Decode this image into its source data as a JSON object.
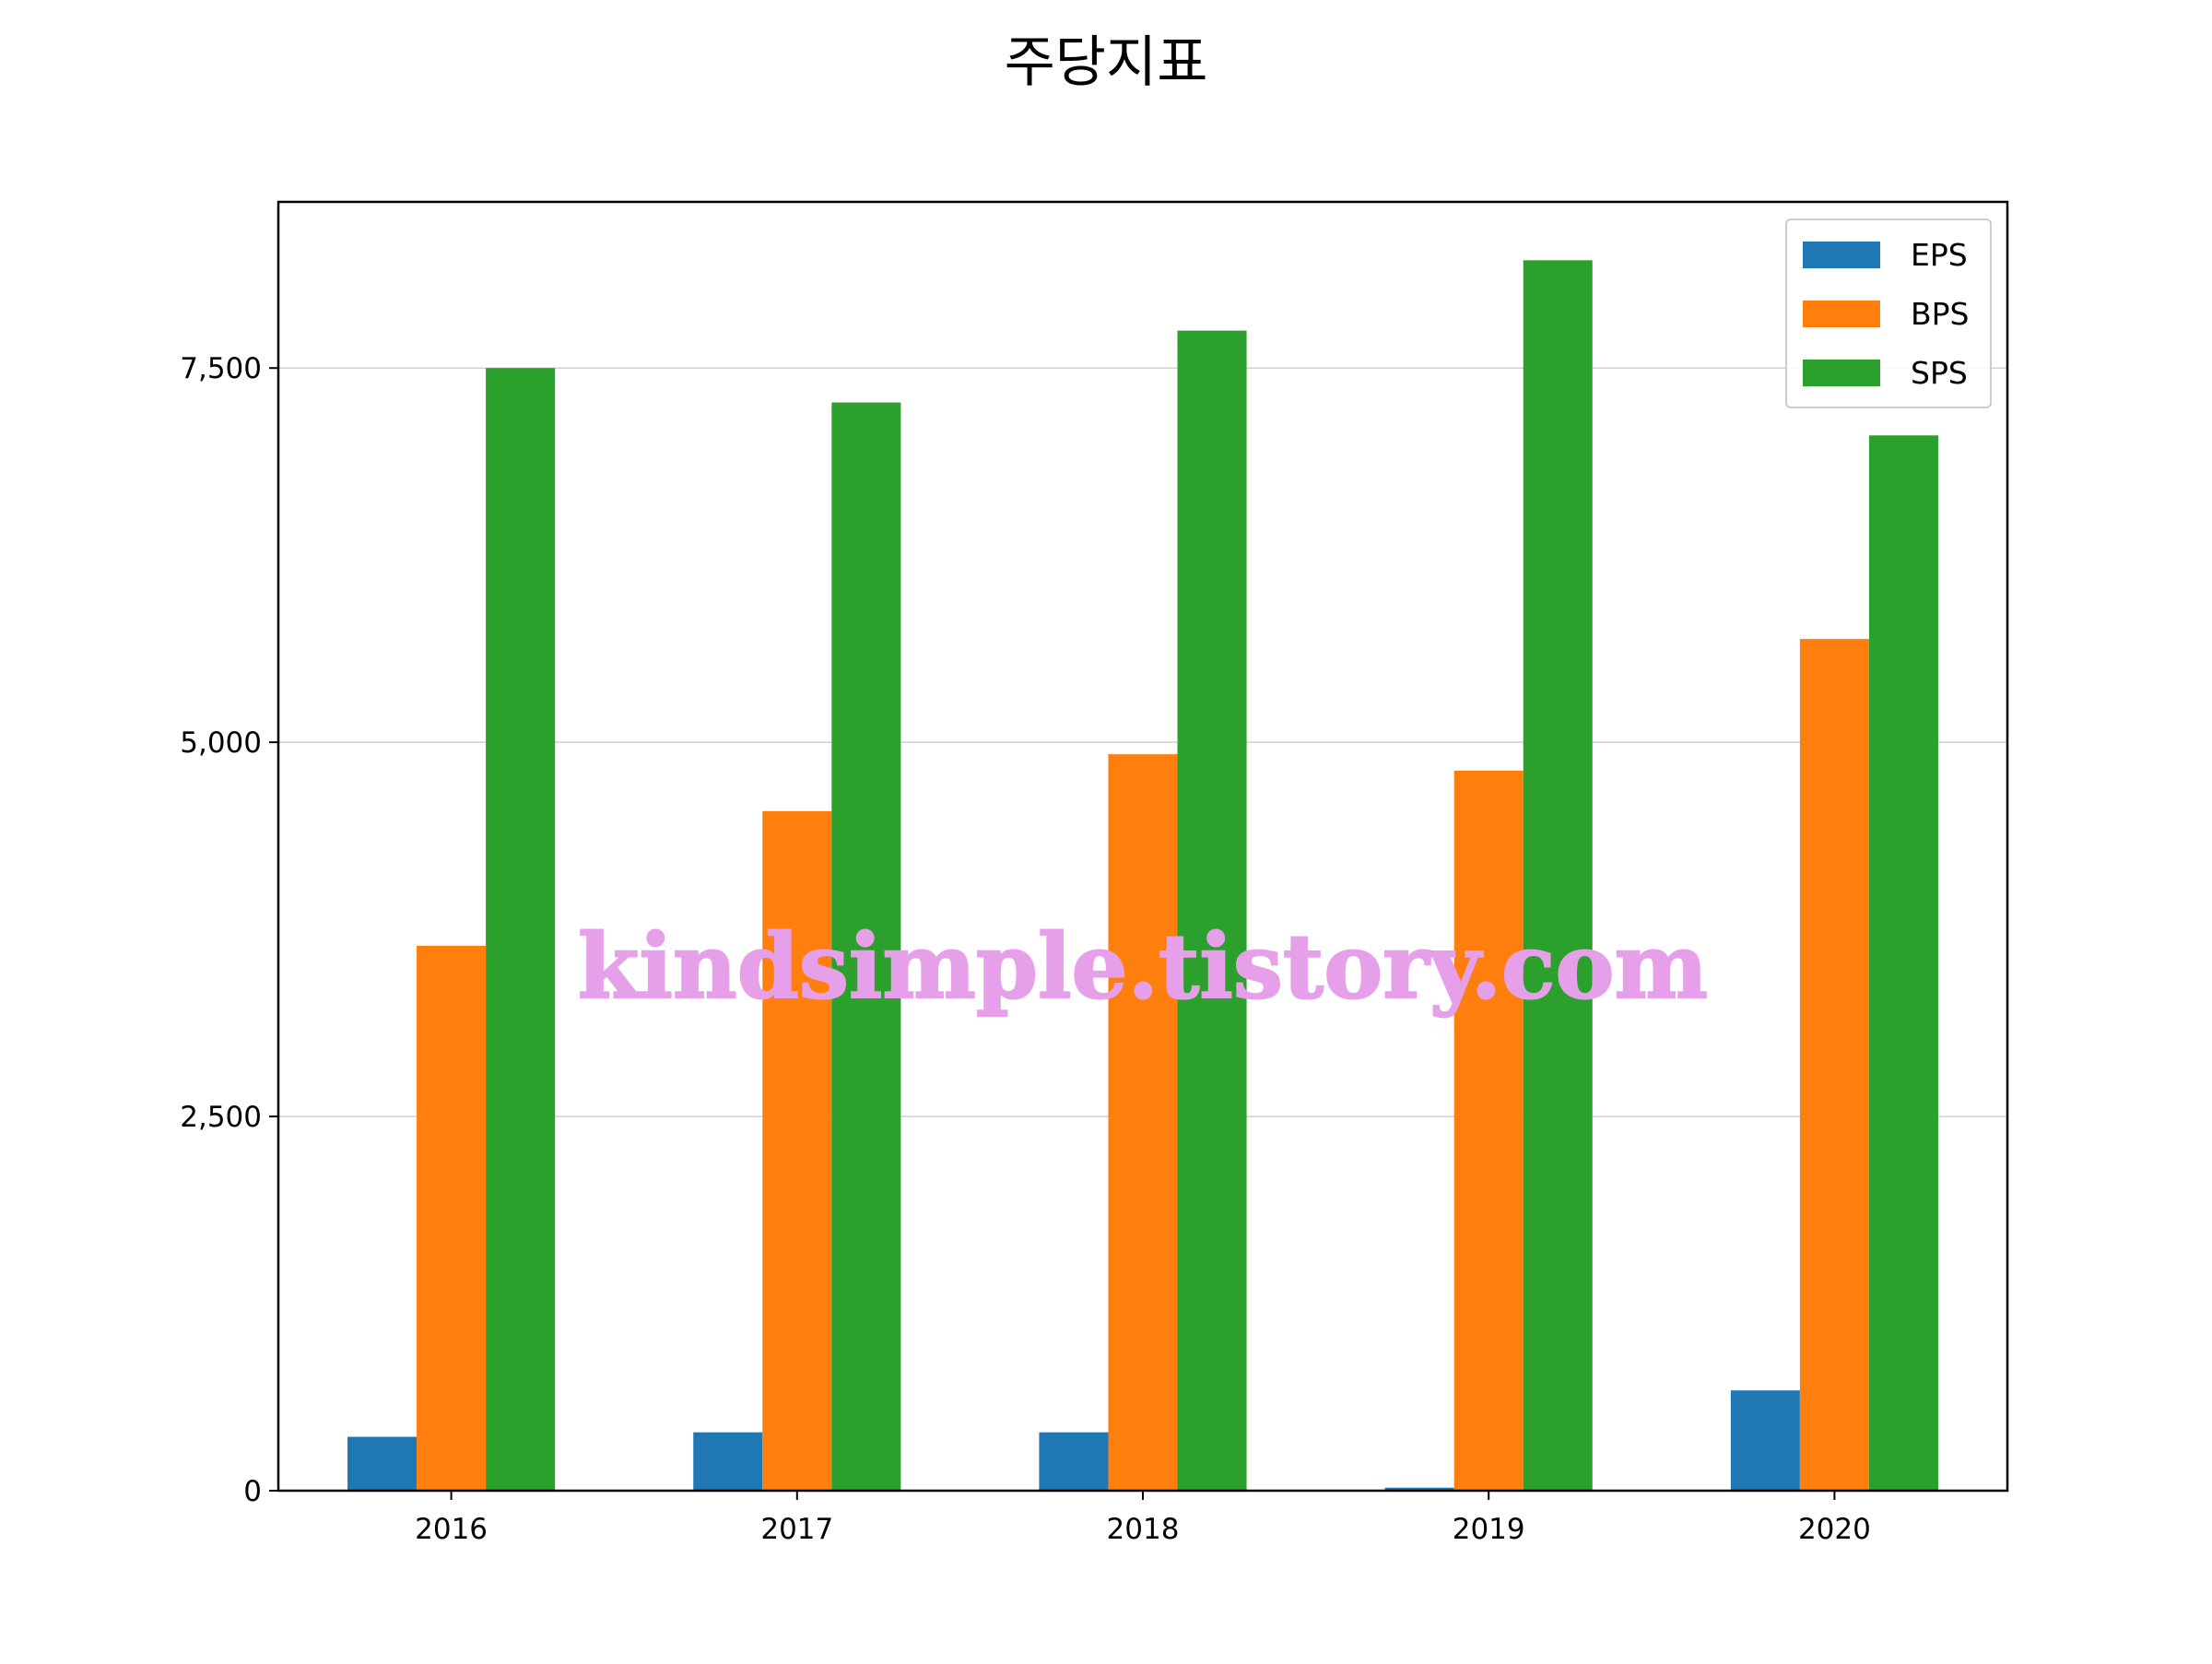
{
  "chart_data": {
    "type": "bar",
    "title": "주당지표",
    "xlabel": "",
    "ylabel": "",
    "categories": [
      "2016",
      "2017",
      "2018",
      "2019",
      "2020"
    ],
    "series": [
      {
        "name": "EPS",
        "color": "#1f77b4",
        "values": [
          360,
          390,
          390,
          20,
          670
        ]
      },
      {
        "name": "BPS",
        "color": "#ff7f0e",
        "values": [
          3640,
          4540,
          4920,
          4810,
          5690
        ]
      },
      {
        "name": "SPS",
        "color": "#2ca02c",
        "values": [
          7500,
          7270,
          7750,
          8220,
          7050
        ]
      }
    ],
    "ylim": [
      0,
      8610
    ],
    "yticks": [
      0,
      2500,
      5000,
      7500
    ],
    "ytick_labels": [
      "0",
      "2,500",
      "5,000",
      "7,500"
    ],
    "grid": "horizontal",
    "legend_position": "top-right",
    "watermark": "kindsimple.tistory.com"
  }
}
